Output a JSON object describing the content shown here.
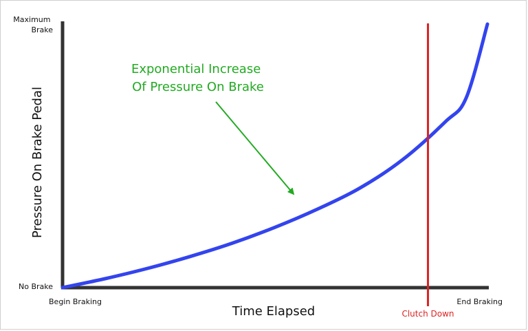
{
  "chart_data": {
    "type": "line",
    "title": "",
    "xlabel": "Time Elapsed",
    "ylabel": "Pressure On Brake Pedal",
    "xlim": [
      0,
      1
    ],
    "ylim": [
      0,
      1
    ],
    "x_ticks": [
      {
        "value": 0,
        "label": "Begin Braking"
      },
      {
        "value": 1,
        "label": "End Braking"
      }
    ],
    "y_ticks": [
      {
        "value": 0,
        "lines": [
          "No Brake"
        ]
      },
      {
        "value": 1,
        "lines": [
          "Maximum",
          "Brake"
        ]
      }
    ],
    "series": [
      {
        "name": "Pressure",
        "color": "#3344ee",
        "x": [
          0,
          0.1,
          0.2,
          0.3,
          0.4,
          0.5,
          0.6,
          0.7,
          0.8,
          0.9,
          0.95,
          1.0
        ],
        "y": [
          0,
          0.034,
          0.073,
          0.118,
          0.169,
          0.229,
          0.298,
          0.378,
          0.485,
          0.628,
          0.72,
          1.0
        ]
      }
    ],
    "vlines": [
      {
        "x": 0.86,
        "label": "Clutch Down",
        "color": "#dd2222"
      }
    ],
    "annotations": [
      {
        "lines": [
          "Exponential Increase",
          "Of Pressure On Brake"
        ],
        "color": "#22aa22",
        "arrow_to": {
          "x": 0.55,
          "y": 0.345
        }
      }
    ],
    "grid": false,
    "legend": "none"
  },
  "colors": {
    "axis": "#333333",
    "curve": "#3344ee",
    "clutch_line": "#dd2222",
    "annotation": "#22aa22"
  }
}
